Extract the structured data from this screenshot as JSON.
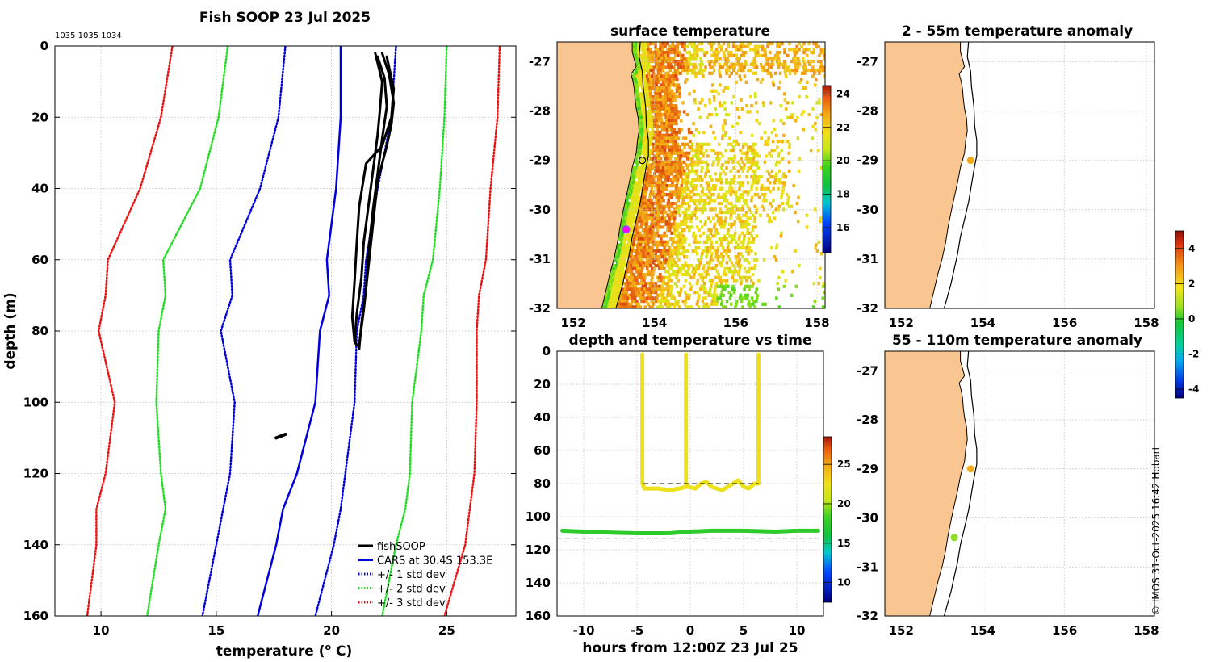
{
  "credit": "© IMOS 31-Oct-2025 16:42 Hobart",
  "colors": {
    "land": "#f9c692",
    "fishsoop": "#000000",
    "cars": "#0000dd",
    "std1": "#0000dd",
    "std2": "#22dd22",
    "std3": "#ee1111"
  },
  "chart_data": [
    {
      "id": "profile",
      "type": "line",
      "title": "Fish SOOP 23 Jul 2025",
      "subtitle": "1035 1035 1034",
      "xlabel": "temperature (",
      "xlabel_sup": "o",
      "xlabel_tail": " C)",
      "ylabel": "depth (m)",
      "xlim": [
        8,
        28
      ],
      "ylim": [
        0,
        160
      ],
      "y_reversed": true,
      "xticks": [
        "10",
        "15",
        "20",
        "25"
      ],
      "yticks": [
        "0",
        "20",
        "40",
        "60",
        "80",
        "100",
        "120",
        "140",
        "160"
      ],
      "legend": [
        {
          "label": "fishSOOP",
          "style": "solid",
          "color": "#000000"
        },
        {
          "label": "CARS at 30.4S 153.3E",
          "style": "solid",
          "color": "#0000dd"
        },
        {
          "label": "+/- 1 std dev",
          "style": "dotted",
          "color": "#0000dd"
        },
        {
          "label": "+/- 2 std dev",
          "style": "dotted",
          "color": "#22dd22"
        },
        {
          "label": "+/- 3 std dev",
          "style": "dotted",
          "color": "#ee1111"
        }
      ],
      "depths": [
        0,
        20,
        40,
        60,
        70,
        80,
        100,
        120,
        130,
        140,
        160
      ],
      "cars_mean": [
        20.4,
        20.4,
        20.2,
        19.8,
        19.9,
        19.5,
        19.3,
        18.5,
        17.9,
        17.6,
        16.8
      ],
      "std1_minus": [
        18.0,
        17.7,
        16.9,
        15.6,
        15.7,
        15.2,
        15.8,
        15.6,
        15.3,
        15.0,
        14.4
      ],
      "std1_plus": [
        22.8,
        22.6,
        22.0,
        21.5,
        21.4,
        21.1,
        21.0,
        20.6,
        20.4,
        20.1,
        19.3
      ],
      "std2_minus": [
        15.5,
        15.1,
        14.3,
        12.7,
        12.8,
        12.5,
        12.4,
        12.6,
        12.8,
        12.5,
        12.0
      ],
      "std2_plus": [
        25.0,
        24.9,
        24.7,
        24.4,
        24.0,
        23.9,
        23.5,
        23.4,
        23.2,
        22.8,
        22.2
      ],
      "std3_minus": [
        13.1,
        12.6,
        11.7,
        10.3,
        10.2,
        9.9,
        10.6,
        10.2,
        9.8,
        9.8,
        9.4
      ],
      "std3_plus": [
        27.3,
        27.2,
        26.9,
        26.7,
        26.4,
        26.3,
        26.3,
        26.2,
        26.0,
        25.8,
        24.9
      ],
      "fishsoop_casts": [
        {
          "temperature": [
            21.9,
            22.2,
            22.1,
            22.0,
            21.8,
            21.6,
            21.4,
            21.3,
            21.1,
            21.0,
            21.1
          ],
          "depth": [
            2,
            10,
            18,
            25,
            35,
            45,
            55,
            65,
            75,
            83,
            84
          ]
        },
        {
          "temperature": [
            22.0,
            22.3,
            22.4,
            22.2,
            22.0,
            21.8,
            21.6,
            21.5,
            21.3,
            21.2
          ],
          "depth": [
            3,
            9,
            17,
            26,
            36,
            46,
            58,
            68,
            78,
            85
          ]
        },
        {
          "temperature": [
            22.2,
            22.5,
            22.7,
            22.6,
            22.4,
            22.0,
            21.8,
            21.6,
            21.4,
            21.2
          ],
          "depth": [
            2,
            8,
            16,
            22,
            28,
            38,
            50,
            62,
            74,
            84
          ]
        },
        {
          "temperature": [
            22.4,
            22.7,
            22.6,
            22.2,
            21.5,
            21.2,
            21.1,
            21.0,
            20.9,
            21.0
          ],
          "depth": [
            3,
            12,
            20,
            28,
            33,
            45,
            55,
            66,
            76,
            83
          ]
        }
      ],
      "fishsoop_deep": {
        "temperature": [
          17.6,
          17.8,
          18.0
        ],
        "depth": [
          110,
          109.5,
          109
        ]
      }
    },
    {
      "id": "sst_map",
      "type": "heatmap",
      "title": "surface temperature",
      "xlim": [
        151.6,
        158.2
      ],
      "ylim": [
        -32,
        -26.6
      ],
      "xticks": [
        "152",
        "154",
        "156",
        "158"
      ],
      "yticks": [
        "-27",
        "-28",
        "-29",
        "-30",
        "-31",
        "-32"
      ],
      "colorbar_ticks": [
        "24",
        "22",
        "20",
        "18",
        "16"
      ],
      "colorbar_range": [
        14.5,
        24.5
      ],
      "marker_black_ring": {
        "lon": 153.7,
        "lat": -29.0
      },
      "marker_magenta": {
        "lon": 153.3,
        "lat": -30.4
      }
    },
    {
      "id": "anomaly_shallow",
      "type": "scatter",
      "title": "2 - 55m temperature anomaly",
      "xlim": [
        151.6,
        158.2
      ],
      "ylim": [
        -32,
        -26.6
      ],
      "xticks": [
        "152",
        "154",
        "156",
        "158"
      ],
      "yticks": [
        "-27",
        "-28",
        "-29",
        "-30",
        "-31",
        "-32"
      ],
      "points": [
        {
          "lon": 153.7,
          "lat": -29.0,
          "anomaly": 2.7
        }
      ]
    },
    {
      "id": "anomaly_deep",
      "type": "scatter",
      "title": "55 - 110m temperature anomaly",
      "xlim": [
        151.6,
        158.2
      ],
      "ylim": [
        -32,
        -26.6
      ],
      "xticks": [
        "152",
        "154",
        "156",
        "158"
      ],
      "yticks": [
        "-27",
        "-28",
        "-29",
        "-30",
        "-31",
        "-32"
      ],
      "points": [
        {
          "lon": 153.7,
          "lat": -29.0,
          "anomaly": 2.6
        },
        {
          "lon": 153.3,
          "lat": -30.4,
          "anomaly": 0.6
        }
      ],
      "colorbar_ticks": [
        "4",
        "2",
        "0",
        "-2",
        "-4"
      ],
      "colorbar_range": [
        -4.5,
        5
      ]
    },
    {
      "id": "depth_time",
      "type": "scatter",
      "title": "depth and temperature vs time",
      "xlabel": "hours from 12:00Z 23 Jul 25",
      "xlim": [
        -12.5,
        12.5
      ],
      "ylim": [
        0,
        160
      ],
      "y_reversed": true,
      "xticks": [
        "-10",
        "-5",
        "0",
        "5",
        "10"
      ],
      "yticks": [
        "0",
        "20",
        "40",
        "60",
        "80",
        "100",
        "120",
        "140",
        "160"
      ],
      "colorbar_ticks": [
        "25",
        "20",
        "15",
        "10"
      ],
      "colorbar_range": [
        7.5,
        28.5
      ],
      "dashed_lines_depth": [
        80,
        113
      ],
      "upper_track_temp": 22.3,
      "lower_track_temp": 17.5,
      "upper_track": {
        "hours": [
          -4.5,
          -4.5,
          -4.5,
          -4.3,
          -3,
          -2,
          -1,
          -0.4,
          -0.4,
          -0.4,
          -0.2,
          0.5,
          1,
          1.5,
          2,
          3,
          3.5,
          4,
          4.5,
          5,
          5.5,
          6,
          6.4,
          6.4
        ],
        "depth": [
          2,
          40,
          80,
          83,
          83,
          84,
          83,
          82,
          2,
          80,
          82,
          83,
          80,
          79,
          82,
          84,
          82,
          80,
          78,
          82,
          83,
          80,
          80,
          2
        ]
      },
      "lower_track": {
        "hours": [
          -12,
          -10,
          -8,
          -5,
          -2,
          0,
          2,
          5,
          8,
          10,
          12
        ],
        "depth": [
          108.5,
          109,
          109.5,
          110,
          110,
          109,
          108.5,
          108.5,
          109,
          108.5,
          108.5
        ]
      }
    }
  ]
}
